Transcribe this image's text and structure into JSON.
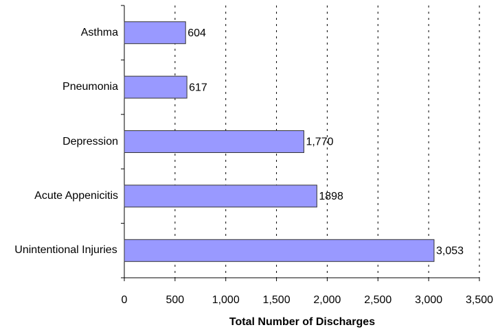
{
  "chart_data": {
    "type": "barh",
    "categories": [
      "Asthma",
      "Pneumonia",
      "Depression",
      "Acute Appenicitis",
      "Unintentional Injuries"
    ],
    "values": [
      604,
      617,
      1770,
      1898,
      3053
    ],
    "value_labels": [
      "604",
      "617",
      "1,770",
      "1898",
      "3,053"
    ],
    "color": "#9999ff",
    "xlabel": "Total Number of Discharges",
    "xlim": [
      0,
      3500
    ],
    "xticks": [
      0,
      {
        "value": 500,
        "label": "500"
      },
      {
        "value": 1000,
        "label": "1,000"
      },
      {
        "value": 1500,
        "label": "1,500"
      },
      {
        "value": 2000,
        "label": "2,000"
      },
      {
        "value": 2500,
        "label": "2,500"
      },
      {
        "value": 3000,
        "label": "3,000"
      },
      {
        "value": 3500,
        "label": "3,500"
      }
    ],
    "grid": true
  }
}
